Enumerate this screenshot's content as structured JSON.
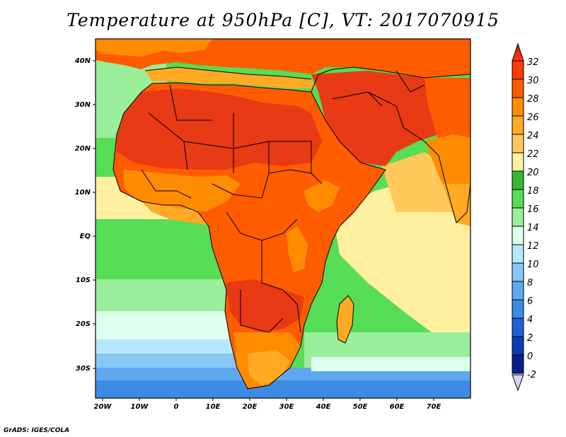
{
  "title": "Temperature at 950hPa [C], VT: 2017070915",
  "credit": "GrADS: IGES/COLA",
  "map": {
    "lat_labels": [
      "40N",
      "30N",
      "20N",
      "10N",
      "EQ",
      "10S",
      "20S",
      "30S"
    ],
    "lon_labels": [
      "20W",
      "10W",
      "0",
      "10E",
      "20E",
      "30E",
      "40E",
      "50E",
      "60E",
      "70E"
    ]
  },
  "colorbar": {
    "unit": "C",
    "labels": [
      "32",
      "30",
      "28",
      "26",
      "24",
      "22",
      "20",
      "18",
      "16",
      "14",
      "12",
      "10",
      "8",
      "6",
      "4",
      "2",
      "0",
      "-2"
    ],
    "colors_top_to_bottom": [
      "#ff3a0a",
      "#ff5c00",
      "#ff8c00",
      "#ffaa22",
      "#ffc95c",
      "#fff0a0",
      "#33bb33",
      "#55dd55",
      "#99ee99",
      "#ddffee",
      "#b8e6ff",
      "#87c6f5",
      "#5fa8f0",
      "#3c8ce6",
      "#2060d8",
      "#0a3cb8",
      "#0a1e8c"
    ],
    "over_color": "#e8281e",
    "under_color": "#d8d4f8"
  },
  "palette": {
    "ocean_south": "#4a8fe0",
    "ocean_mid": "#87c6f5",
    "ocean_light": "#ddffee",
    "ocean_green": "#55dd55",
    "ocean_warm": "#fff0a0",
    "land_hot": "#e83a14",
    "land_warm": "#ff8c00",
    "land_orange": "#ffaa22",
    "border": "#000000"
  }
}
